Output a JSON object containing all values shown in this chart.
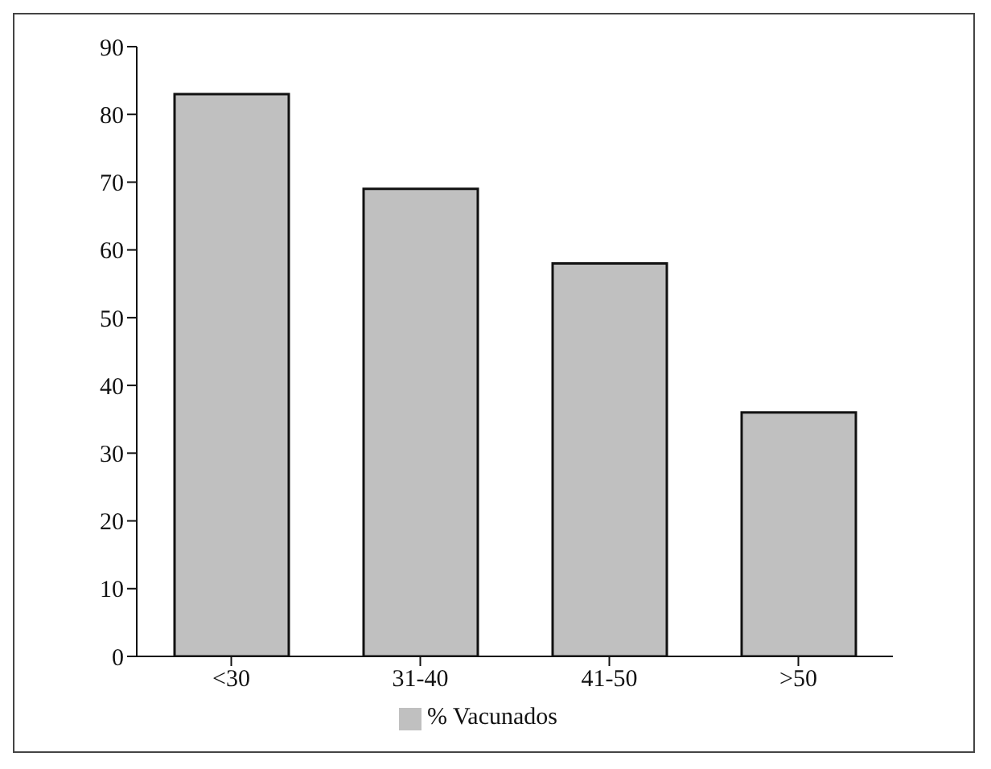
{
  "chart_data": {
    "type": "bar",
    "categories": [
      "<30",
      "31-40",
      "41-50",
      ">50"
    ],
    "series": [
      {
        "name": "% Vacunados",
        "color": "#c0c0c0",
        "values": [
          83,
          69,
          58,
          36
        ]
      }
    ],
    "ylim": [
      0,
      90
    ],
    "yticks": [
      0,
      10,
      20,
      30,
      40,
      50,
      60,
      70,
      80,
      90
    ],
    "grid": false,
    "legend": "bottom"
  }
}
